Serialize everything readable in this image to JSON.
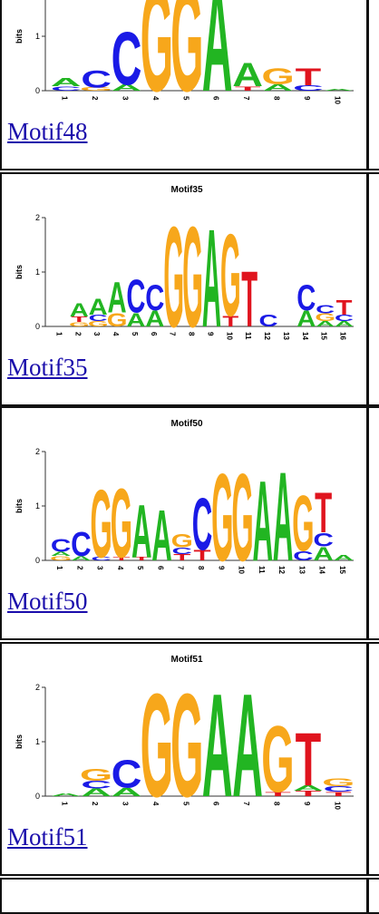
{
  "rows": [
    {
      "title": "",
      "link": "Motif48",
      "positions": [
        "1",
        "2",
        "3",
        "4",
        "5",
        "6",
        "7",
        "8",
        "9",
        "10"
      ],
      "stacks": [
        [
          [
            "C",
            0.08
          ],
          [
            "A",
            0.16
          ]
        ],
        [
          [
            "G",
            0.06
          ],
          [
            "C",
            0.32
          ]
        ],
        [
          [
            "A",
            0.12
          ],
          [
            "C",
            1.0
          ]
        ],
        [
          [
            "G",
            1.95
          ]
        ],
        [
          [
            "G",
            1.95
          ]
        ],
        [
          [
            "A",
            1.95
          ]
        ],
        [
          [
            "T",
            0.08
          ],
          [
            "A",
            0.45
          ]
        ],
        [
          [
            "A",
            0.12
          ],
          [
            "G",
            0.3
          ]
        ],
        [
          [
            "C",
            0.1
          ],
          [
            "T",
            0.32
          ]
        ],
        [
          [
            "A",
            0.03
          ]
        ]
      ]
    },
    {
      "title": "Motif35",
      "link": "Motif35",
      "positions": [
        "1",
        "2",
        "3",
        "4",
        "5",
        "6",
        "7",
        "8",
        "9",
        "10",
        "11",
        "12",
        "13",
        "14",
        "15",
        "16"
      ],
      "stacks": [
        [],
        [
          [
            "G",
            0.08
          ],
          [
            "T",
            0.1
          ],
          [
            "A",
            0.26
          ]
        ],
        [
          [
            "G",
            0.1
          ],
          [
            "C",
            0.12
          ],
          [
            "A",
            0.3
          ]
        ],
        [
          [
            "G",
            0.26
          ],
          [
            "A",
            0.58
          ]
        ],
        [
          [
            "A",
            0.26
          ],
          [
            "C",
            0.62
          ]
        ],
        [
          [
            "A",
            0.3
          ],
          [
            "C",
            0.48
          ]
        ],
        [
          [
            "G",
            1.9
          ]
        ],
        [
          [
            "G",
            1.9
          ]
        ],
        [
          [
            "A",
            1.85
          ]
        ],
        [
          [
            "T",
            0.2
          ],
          [
            "G",
            1.55
          ]
        ],
        [
          [
            "T",
            1.05
          ]
        ],
        [
          [
            "C",
            0.22
          ]
        ],
        [],
        [
          [
            "A",
            0.3
          ],
          [
            "C",
            0.48
          ]
        ],
        [
          [
            "A",
            0.1
          ],
          [
            "G",
            0.14
          ],
          [
            "C",
            0.16
          ]
        ],
        [
          [
            "A",
            0.1
          ],
          [
            "C",
            0.12
          ],
          [
            "T",
            0.28
          ]
        ]
      ]
    },
    {
      "title": "Motif50",
      "link": "Motif50",
      "positions": [
        "1",
        "2",
        "3",
        "4",
        "5",
        "6",
        "7",
        "8",
        "9",
        "10",
        "11",
        "12",
        "13",
        "14",
        "15"
      ],
      "stacks": [
        [
          [
            "G",
            0.08
          ],
          [
            "A",
            0.08
          ],
          [
            "C",
            0.24
          ]
        ],
        [
          [
            "A",
            0.08
          ],
          [
            "C",
            0.46
          ]
        ],
        [
          [
            "C",
            0.06
          ],
          [
            "G",
            1.28
          ]
        ],
        [
          [
            "T",
            0.06
          ],
          [
            "G",
            1.3
          ]
        ],
        [
          [
            "T",
            0.06
          ],
          [
            "A",
            1.0
          ]
        ],
        [
          [
            "A",
            0.96
          ]
        ],
        [
          [
            "T",
            0.12
          ],
          [
            "C",
            0.12
          ],
          [
            "G",
            0.26
          ]
        ],
        [
          [
            "T",
            0.2
          ],
          [
            "C",
            0.98
          ]
        ],
        [
          [
            "G",
            1.65
          ]
        ],
        [
          [
            "G",
            1.65
          ]
        ],
        [
          [
            "A",
            1.52
          ]
        ],
        [
          [
            "A",
            1.68
          ]
        ],
        [
          [
            "C",
            0.18
          ],
          [
            "G",
            1.05
          ]
        ],
        [
          [
            "A",
            0.26
          ],
          [
            "C",
            0.26
          ],
          [
            "T",
            0.76
          ]
        ],
        [
          [
            "A",
            0.1
          ]
        ]
      ]
    },
    {
      "title": "Motif51",
      "link": "Motif51",
      "positions": [
        "1",
        "2",
        "3",
        "4",
        "5",
        "6",
        "7",
        "8",
        "9",
        "10"
      ],
      "stacks": [
        [
          [
            "A",
            0.05
          ]
        ],
        [
          [
            "A",
            0.14
          ],
          [
            "C",
            0.14
          ],
          [
            "G",
            0.22
          ]
        ],
        [
          [
            "A",
            0.16
          ],
          [
            "C",
            0.52
          ]
        ],
        [
          [
            "G",
            1.95
          ]
        ],
        [
          [
            "G",
            1.95
          ]
        ],
        [
          [
            "A",
            1.95
          ]
        ],
        [
          [
            "A",
            1.95
          ]
        ],
        [
          [
            "T",
            0.08
          ],
          [
            "G",
            1.25
          ]
        ],
        [
          [
            "T",
            0.1
          ],
          [
            "A",
            0.1
          ],
          [
            "T",
            1.0
          ]
        ],
        [
          [
            "T",
            0.08
          ],
          [
            "C",
            0.1
          ],
          [
            "G",
            0.14
          ]
        ]
      ]
    }
  ],
  "axis": {
    "label": "bits",
    "ticks": [
      "0",
      "1",
      "2"
    ]
  },
  "colors": {
    "A": "#22b522",
    "C": "#1a1ae6",
    "G": "#f7a71b",
    "T": "#e0141e"
  }
}
